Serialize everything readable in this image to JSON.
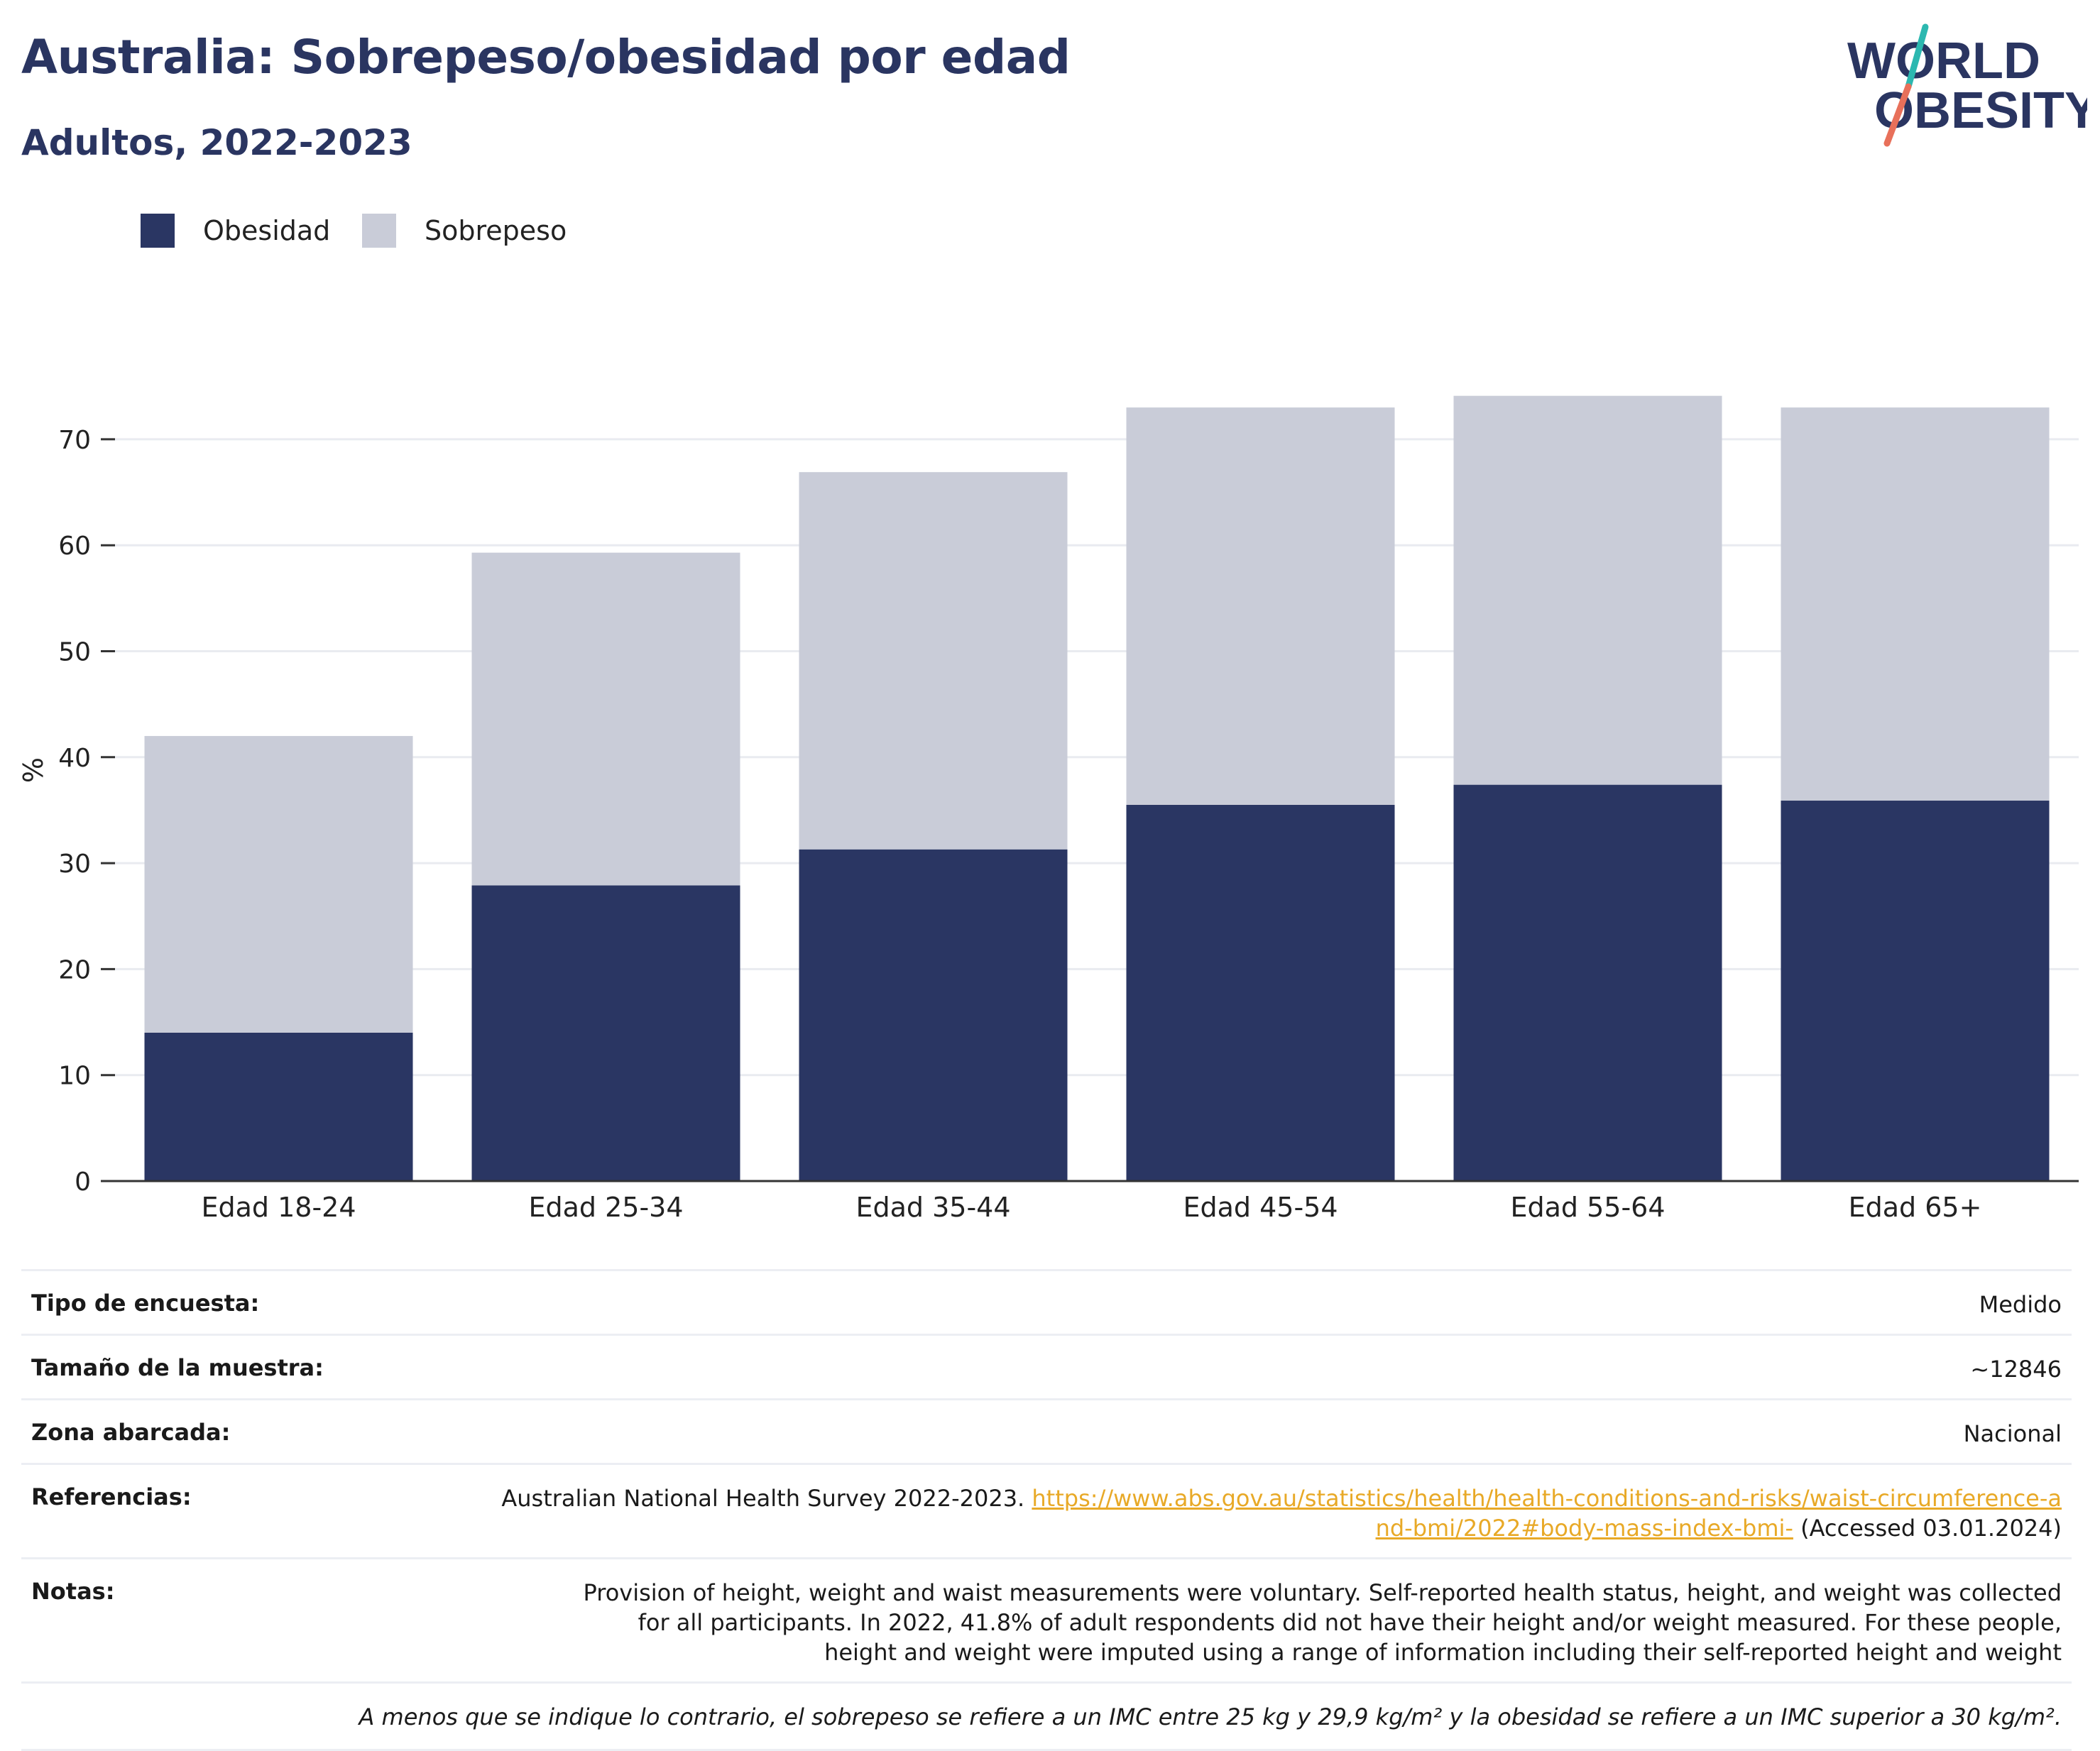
{
  "header": {
    "title": "Australia: Sobrepeso/obesidad por edad",
    "subtitle": "Adultos, 2022-2023"
  },
  "logo": {
    "line1": "WORLD",
    "line2": "OBESITY",
    "slash_colors": [
      "#2cb8b0",
      "#e8705a"
    ]
  },
  "colors": {
    "obesidad": "#2a3663",
    "sobrepeso": "#c9ccd8",
    "title": "#2a3561",
    "link": "#e8a927"
  },
  "legend": [
    {
      "label": "Obesidad",
      "color": "#2a3663"
    },
    {
      "label": "Sobrepeso",
      "color": "#c9ccd8"
    }
  ],
  "chart_data": {
    "type": "bar",
    "stacked": true,
    "categories": [
      "Edad 18-24",
      "Edad 25-34",
      "Edad 35-44",
      "Edad 45-54",
      "Edad 55-64",
      "Edad 65+"
    ],
    "series": [
      {
        "name": "Obesidad",
        "values": [
          14.0,
          27.9,
          31.3,
          35.5,
          37.4,
          35.9
        ]
      },
      {
        "name": "Sobrepeso",
        "values": [
          28.0,
          31.4,
          35.6,
          37.5,
          36.7,
          37.1
        ]
      }
    ],
    "ylabel": "%",
    "ylim": [
      0,
      80
    ],
    "yticks": [
      0,
      10,
      20,
      30,
      40,
      50,
      60,
      70
    ],
    "grid": true,
    "legend_position": "top-left"
  },
  "info": {
    "rows": [
      {
        "label": "Tipo de encuesta:",
        "value": "Medido"
      },
      {
        "label": "Tamaño de la muestra:",
        "value": "~12846"
      },
      {
        "label": "Zona abarcada:",
        "value": "Nacional"
      }
    ],
    "references": {
      "label": "Referencias:",
      "text_before": "Australian National Health Survey 2022-2023.",
      "link": "https://www.abs.gov.au/statistics/health/health-conditions-and-risks/waist-circumference-and-bmi/2022#body-mass-index-bmi-",
      "text_after": "(Accessed 03.01.2024)"
    },
    "notes": {
      "label": "Notas:",
      "value": "Provision of height, weight and waist measurements were voluntary. Self-reported health status, height, and weight was collected for all participants. In 2022, 41.8% of adult respondents did not have their height and/or weight measured. For these people, height and weight were imputed using a range of information including their self-reported height and weight"
    },
    "footnote": "A menos que se indique lo contrario, el sobrepeso se refiere a un IMC entre 25 kg y 29,9 kg/m² y la obesidad se refiere a un IMC superior a 30 kg/m²."
  }
}
